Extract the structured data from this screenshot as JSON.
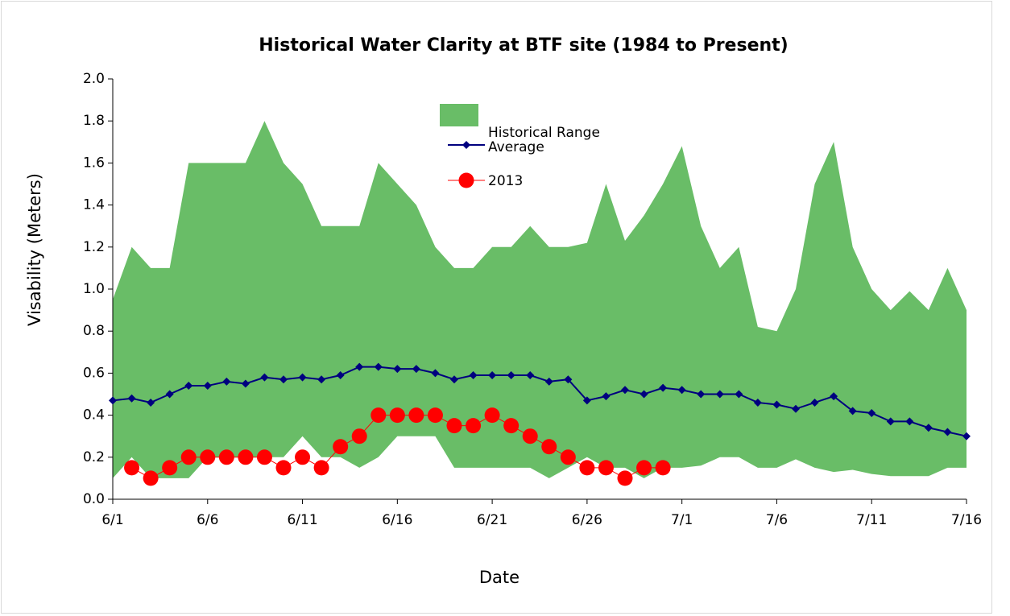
{
  "chart_data": {
    "type": "line",
    "title": "Historical Water Clarity at BTF site (1984 to Present)",
    "x_label": "Date",
    "y_label": "Visability (Meters)",
    "categories": [
      "6/1",
      null,
      null,
      null,
      null,
      "6/6",
      null,
      null,
      null,
      null,
      "6/11",
      null,
      null,
      null,
      null,
      "6/16",
      null,
      null,
      null,
      null,
      "6/21",
      null,
      null,
      null,
      null,
      "6/26",
      null,
      null,
      null,
      null,
      "7/1",
      null,
      null,
      null,
      null,
      "7/6",
      null,
      null,
      null,
      null,
      "7/11",
      null,
      null,
      null,
      null,
      "7/16"
    ],
    "ylim": [
      0,
      2
    ],
    "yticks": [
      {
        "value": 0,
        "label": "0.0"
      },
      0.2,
      0.4,
      0.6,
      0.8,
      {
        "value": 1,
        "label": "1.0"
      },
      1.2,
      1.4,
      1.6,
      1.8,
      {
        "value": 2,
        "label": "2.0"
      }
    ],
    "series": [
      {
        "name": "Historical Range",
        "type": "area",
        "color": "#69bd67",
        "values": [
          0.95,
          1.2,
          1.1,
          1.1,
          1.6,
          1.6,
          1.6,
          1.6,
          1.8,
          1.6,
          1.5,
          1.3,
          1.3,
          1.3,
          1.6,
          1.5,
          1.4,
          1.2,
          1.1,
          1.1,
          1.2,
          1.2,
          1.3,
          1.2,
          1.2,
          1.22,
          1.5,
          1.23,
          1.35,
          1.5,
          1.68,
          1.3,
          1.1,
          1.2,
          0.82,
          0.8,
          1.0,
          1.5,
          1.7,
          1.2,
          1.0,
          0.9,
          0.99,
          0.9,
          1.1,
          0.9
        ],
        "low": [
          0.1,
          0.2,
          0.1,
          0.1,
          0.1,
          0.2,
          0.2,
          0.2,
          0.2,
          0.2,
          0.3,
          0.2,
          0.2,
          0.15,
          0.2,
          0.3,
          0.3,
          0.3,
          0.15,
          0.15,
          0.15,
          0.15,
          0.15,
          0.1,
          0.15,
          0.2,
          0.15,
          0.15,
          0.1,
          0.15,
          0.15,
          0.16,
          0.2,
          0.2,
          0.15,
          0.15,
          0.19,
          0.15,
          0.13,
          0.14,
          0.12,
          0.11,
          0.11,
          0.11,
          0.15,
          0.15
        ]
      },
      {
        "name": "Average",
        "type": "line",
        "marker": "diamond",
        "color": "#00007f",
        "values": [
          0.47,
          0.48,
          0.46,
          0.5,
          0.54,
          0.54,
          0.56,
          0.55,
          0.58,
          0.57,
          0.58,
          0.57,
          0.59,
          0.63,
          0.63,
          0.62,
          0.62,
          0.6,
          0.57,
          0.59,
          0.59,
          0.59,
          0.59,
          0.56,
          0.57,
          0.47,
          0.49,
          0.52,
          0.5,
          0.53,
          0.52,
          0.5,
          0.5,
          0.5,
          0.46,
          0.45,
          0.43,
          0.46,
          0.49,
          0.42,
          0.41,
          0.37,
          0.37,
          0.34,
          0.32,
          0.3
        ]
      },
      {
        "name": "2013",
        "type": "line",
        "marker": "circle",
        "color": "#ff0000",
        "values": [
          null,
          0.15,
          0.1,
          0.15,
          0.2,
          0.2,
          0.2,
          0.2,
          0.2,
          0.15,
          0.2,
          0.15,
          0.25,
          0.3,
          0.4,
          0.4,
          0.4,
          0.4,
          0.35,
          0.35,
          0.4,
          0.35,
          0.3,
          0.25,
          0.2,
          0.15,
          0.15,
          0.1,
          0.15,
          0.15,
          null,
          null,
          null,
          null,
          null,
          null,
          null,
          null,
          null,
          null,
          null,
          null,
          null,
          null,
          null,
          null
        ]
      }
    ]
  }
}
